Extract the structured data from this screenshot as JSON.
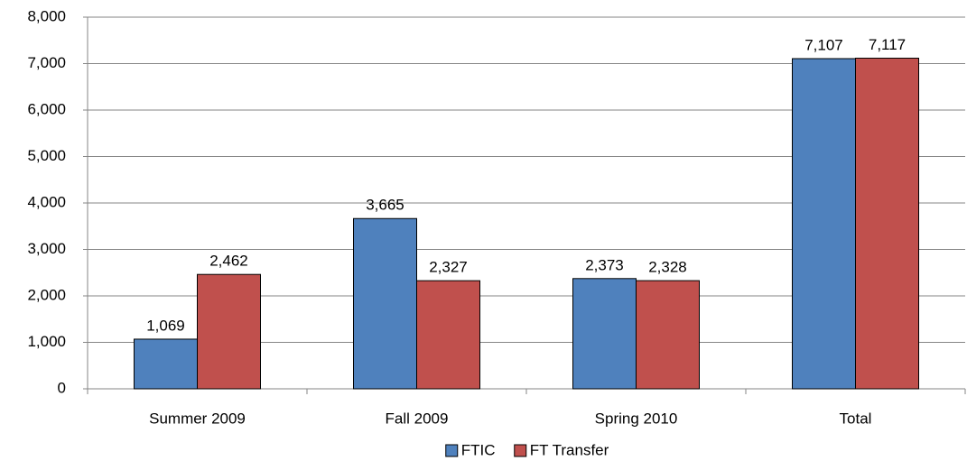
{
  "chart_data": {
    "type": "bar",
    "categories": [
      "Summer 2009",
      "Fall 2009",
      "Spring 2010",
      "Total"
    ],
    "series": [
      {
        "name": "FTIC",
        "color": "#4f81bd",
        "values": [
          1069,
          3665,
          2373,
          7107
        ],
        "value_labels": [
          "1,069",
          "3,665",
          "2,373",
          "7,107"
        ]
      },
      {
        "name": "FT Transfer",
        "color": "#c0504d",
        "values": [
          2462,
          2327,
          2328,
          7117
        ],
        "value_labels": [
          "2,462",
          "2,327",
          "2,328",
          "7,117"
        ]
      }
    ],
    "ylim": [
      0,
      8000
    ],
    "yticks": [
      0,
      {
        "value": 1000,
        "label": "1,000"
      },
      {
        "value": 2000,
        "label": "2,000"
      },
      {
        "value": 3000,
        "label": "3,000"
      },
      {
        "value": 4000,
        "label": "4,000"
      },
      {
        "value": 5000,
        "label": "5,000"
      },
      {
        "value": 6000,
        "label": "6,000"
      },
      {
        "value": 7000,
        "label": "7,000"
      },
      {
        "value": 8000,
        "label": "8,000"
      }
    ],
    "grid": true,
    "legend": "bottom"
  }
}
